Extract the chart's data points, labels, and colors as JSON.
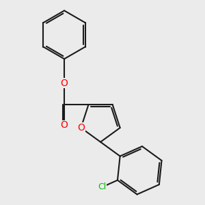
{
  "background_color": "#ebebeb",
  "bond_color": "#1a1a1a",
  "bond_width": 1.5,
  "atom_colors": {
    "O": "#ff0000",
    "Cl": "#00bb00",
    "C": "#1a1a1a"
  },
  "font_size_atom": 10,
  "figsize": [
    3.0,
    3.0
  ],
  "dpi": 100
}
